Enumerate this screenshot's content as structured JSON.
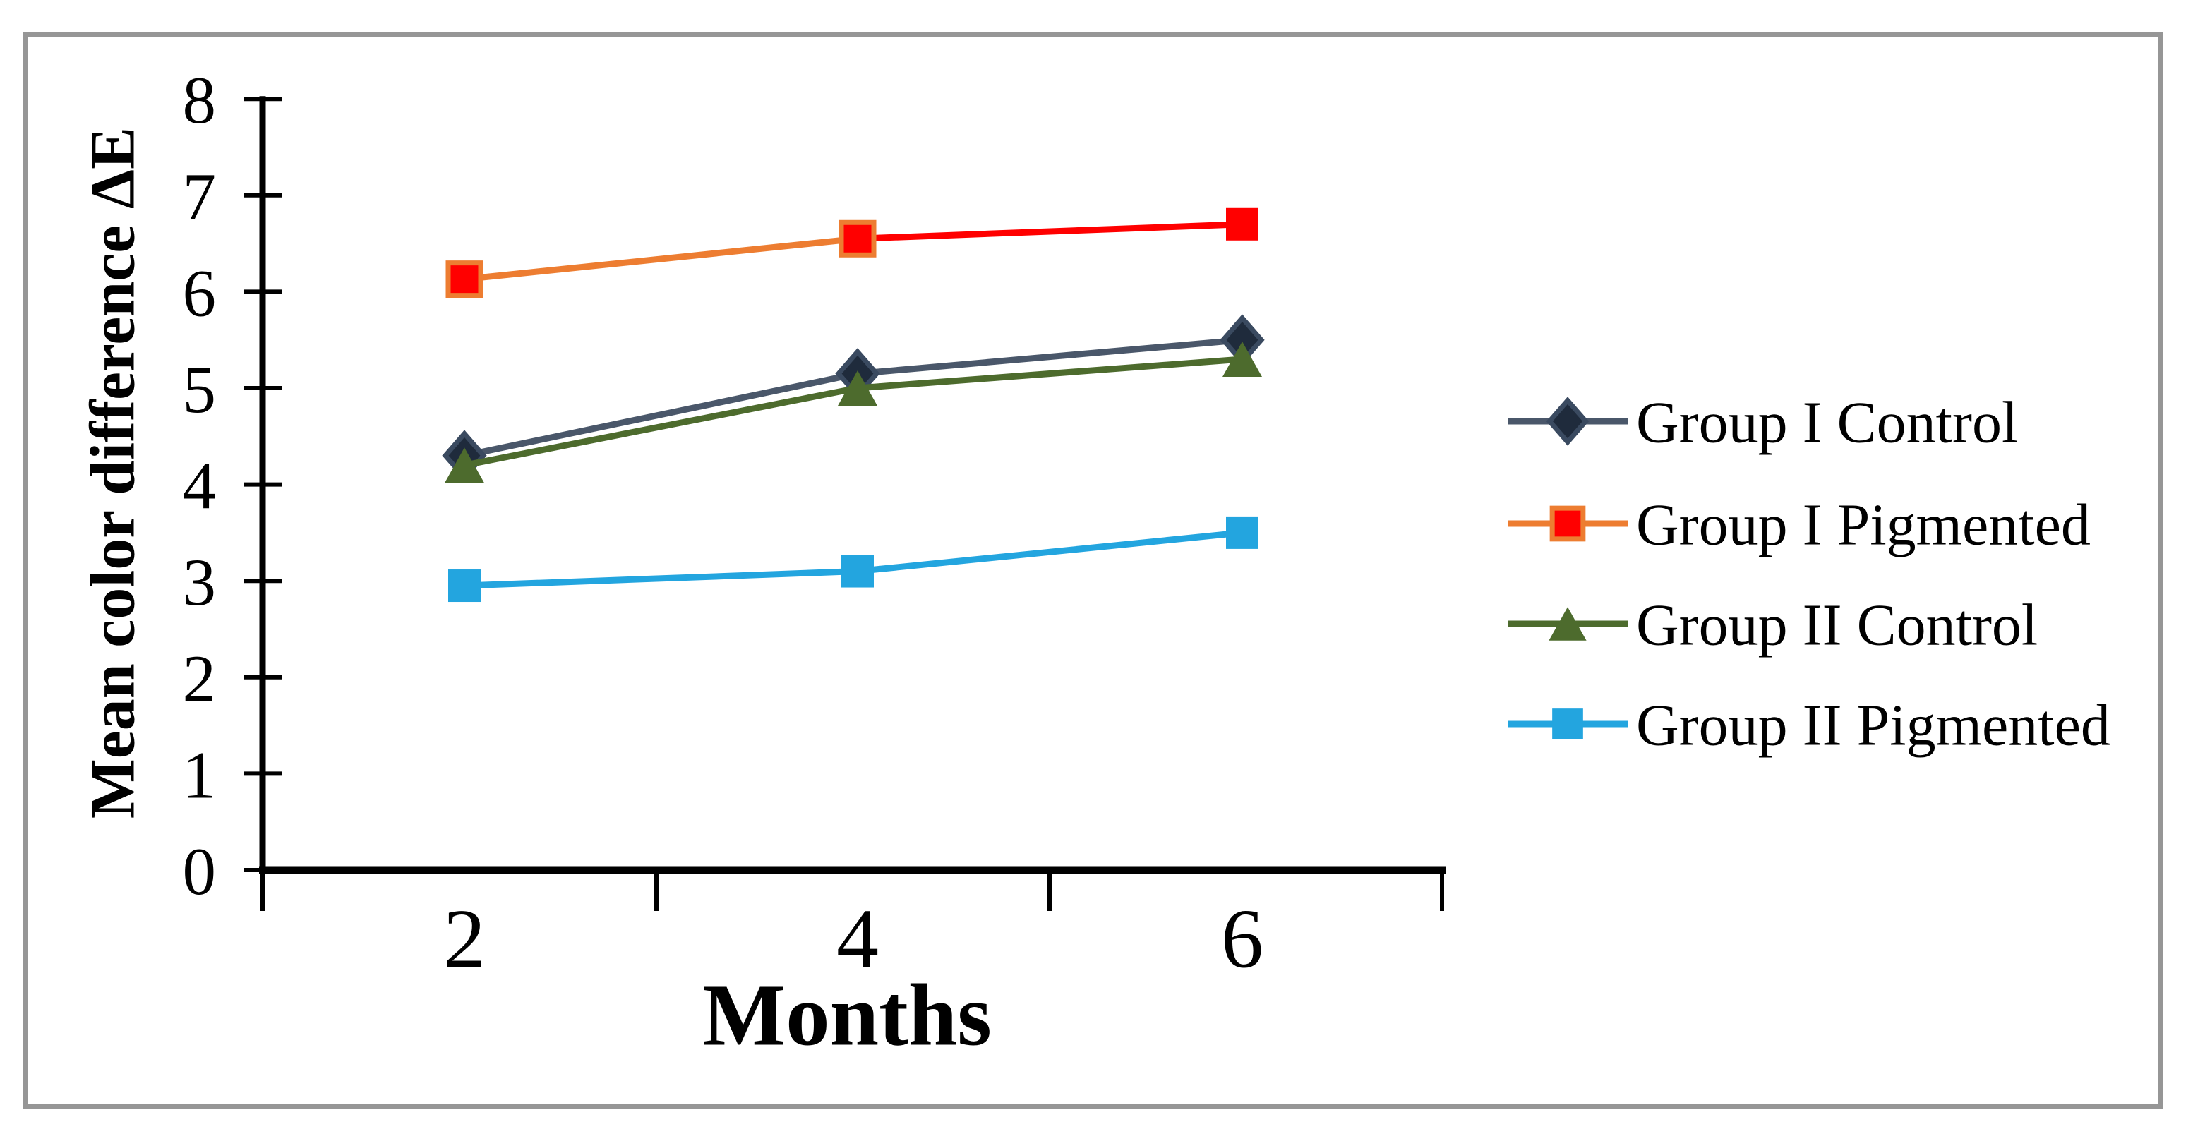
{
  "figure": {
    "background_color": "#ffffff",
    "border_color": "#969696"
  },
  "chart_data": {
    "type": "line",
    "title": "",
    "xlabel": "Months",
    "ylabel": "Mean color difference ΔE",
    "x_categories": [
      "2",
      "4",
      "6"
    ],
    "y_tick_labels": [
      "0",
      "1",
      "2",
      "3",
      "4",
      "5",
      "6",
      "7",
      "8"
    ],
    "ylim": [
      0,
      8
    ],
    "ytick_step": 1,
    "grid": false,
    "legend_position": "right",
    "axis_color": "#000000",
    "series": [
      {
        "name": "Group I Control",
        "values": [
          4.3,
          5.15,
          5.5
        ],
        "line_color": "#4A576A",
        "marker": "diamond",
        "marker_color": "#1F2B3C",
        "marker_stroke": "#3A4A60"
      },
      {
        "name": "Group I Pigmented",
        "values": [
          6.13,
          6.55,
          6.7
        ],
        "line_color": "#ED7D31",
        "segment_colors": [
          "#ED7D31",
          "#FF0000"
        ],
        "marker": "square",
        "marker_color": "#FF0000",
        "marker_strokes": [
          "#ED7D31",
          "#ED7D31",
          "none"
        ]
      },
      {
        "name": "Group II Control",
        "values": [
          4.2,
          5.0,
          5.3
        ],
        "line_color": "#4D6B2D",
        "marker": "triangle",
        "marker_color": "#4D6B2D",
        "marker_stroke": "none"
      },
      {
        "name": "Group II Pigmented",
        "values": [
          2.95,
          3.1,
          3.5
        ],
        "line_color": "#23A5DF",
        "marker": "square",
        "marker_color": "#23A5DF",
        "marker_stroke": "none"
      }
    ]
  }
}
